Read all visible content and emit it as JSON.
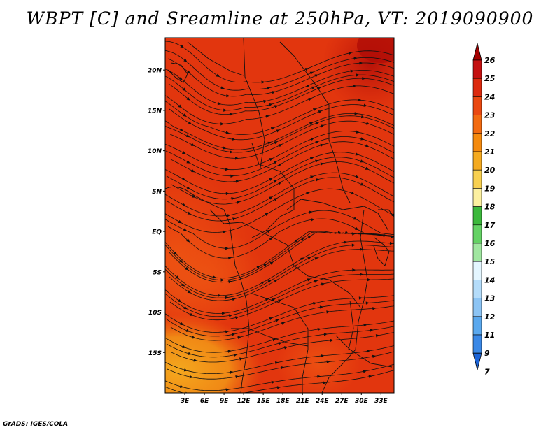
{
  "title": "WBPT [C] and Sreamline at 250hPa, VT: 2019090900",
  "footer": "GrADS: IGES/COLA",
  "map": {
    "lon_range": [
      0,
      35
    ],
    "lat_range": [
      -20,
      24
    ],
    "lat_ticks": [
      {
        "value": 20,
        "label": "20N"
      },
      {
        "value": 15,
        "label": "15N"
      },
      {
        "value": 10,
        "label": "10N"
      },
      {
        "value": 5,
        "label": "5N"
      },
      {
        "value": 0,
        "label": "EQ"
      },
      {
        "value": -5,
        "label": "5S"
      },
      {
        "value": -10,
        "label": "10S"
      },
      {
        "value": -15,
        "label": "15S"
      }
    ],
    "lon_ticks": [
      {
        "value": 3,
        "label": "3E"
      },
      {
        "value": 6,
        "label": "6E"
      },
      {
        "value": 9,
        "label": "9E"
      },
      {
        "value": 12,
        "label": "12E"
      },
      {
        "value": 15,
        "label": "15E"
      },
      {
        "value": 18,
        "label": "18E"
      },
      {
        "value": 21,
        "label": "21E"
      },
      {
        "value": 24,
        "label": "24E"
      },
      {
        "value": 27,
        "label": "27E"
      },
      {
        "value": 30,
        "label": "30E"
      },
      {
        "value": 33,
        "label": "33E"
      }
    ]
  },
  "colorbar": {
    "labels": [
      "26",
      "25",
      "24",
      "23",
      "22",
      "21",
      "20",
      "19",
      "18",
      "17",
      "16",
      "15",
      "14",
      "13",
      "12",
      "11",
      "9",
      "7"
    ],
    "colors": [
      "#a50000",
      "#c41010",
      "#dc2a0e",
      "#ea4810",
      "#f26a10",
      "#f48a0e",
      "#f4aa20",
      "#f8d050",
      "#fcf0a0",
      "#3cb83c",
      "#64d264",
      "#a0e6a0",
      "#e4f6ff",
      "#b4dcfa",
      "#8cc4f4",
      "#5aa8ee",
      "#3a88e6",
      "#1c64d8"
    ]
  }
}
